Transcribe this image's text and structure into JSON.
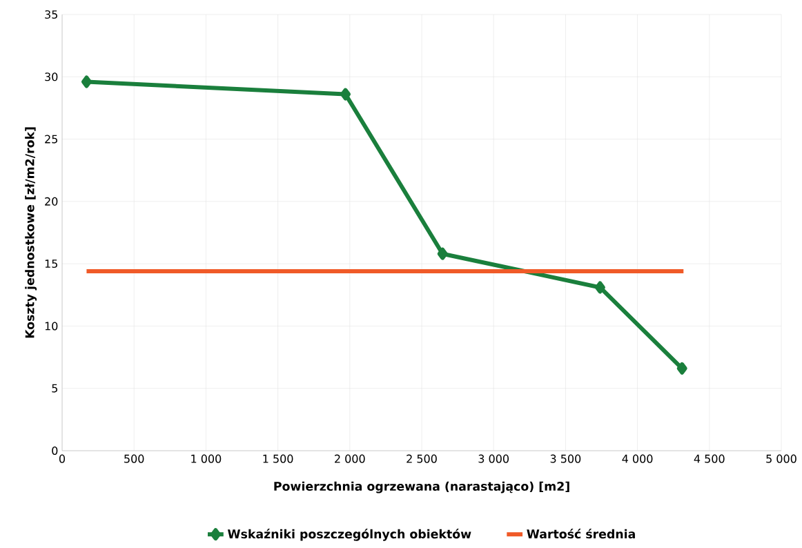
{
  "chart_data": {
    "type": "line",
    "xlabel": "Powierzchnia ogrzewana (narastająco) [m2]",
    "ylabel": "Koszty jednostkowe [zł/m2/rok]",
    "xlim": [
      0,
      5000
    ],
    "ylim": [
      0,
      35
    ],
    "xticks": [
      0,
      500,
      {
        "value": 1000,
        "label": "1 000"
      },
      {
        "value": 1500,
        "label": "1 500"
      },
      {
        "value": 2000,
        "label": "2 000"
      },
      {
        "value": 2500,
        "label": "2 500"
      },
      {
        "value": 3000,
        "label": "3 000"
      },
      {
        "value": 3500,
        "label": "3 500"
      },
      {
        "value": 4000,
        "label": "4 000"
      },
      {
        "value": 4500,
        "label": "4 500"
      },
      {
        "value": 5000,
        "label": "5 000"
      }
    ],
    "yticks": [
      0,
      5,
      10,
      15,
      20,
      25,
      30,
      35
    ],
    "grid": true,
    "legend": "bottom",
    "line_style": "solid",
    "series": [
      {
        "name": "Wskaźniki poszczególnych obiektów",
        "color": "#1a7f3c",
        "marker": "diamond",
        "x": [
          170,
          1970,
          2645,
          3740,
          4310
        ],
        "values": [
          29.6,
          28.6,
          15.8,
          13.1,
          6.6
        ]
      },
      {
        "name": "Wartość średnia",
        "color": "#f05a28",
        "marker": "none",
        "x": [
          170,
          4320
        ],
        "values": [
          14.4,
          14.4
        ]
      }
    ]
  }
}
